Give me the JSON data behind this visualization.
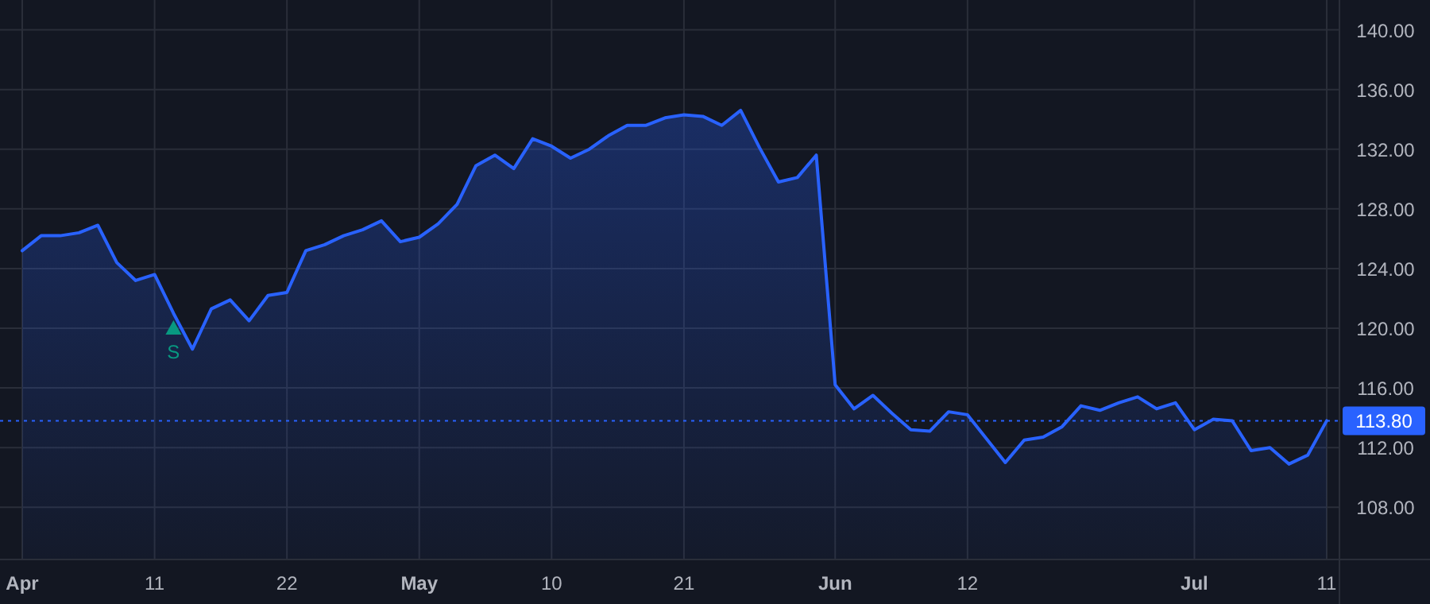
{
  "chart_data": {
    "type": "area",
    "categories": [
      "Apr",
      null,
      null,
      null,
      null,
      null,
      null,
      "11",
      null,
      null,
      null,
      null,
      null,
      null,
      "22",
      null,
      null,
      null,
      null,
      null,
      null,
      "May",
      null,
      null,
      null,
      null,
      null,
      null,
      "10",
      null,
      null,
      null,
      null,
      null,
      null,
      "21",
      null,
      null,
      null,
      null,
      null,
      null,
      null,
      "Jun",
      null,
      null,
      null,
      null,
      null,
      null,
      "12",
      null,
      null,
      null,
      null,
      null,
      null,
      null,
      null,
      null,
      null,
      null,
      "Jul",
      null,
      null,
      null,
      null,
      null,
      null,
      "11"
    ],
    "series": [
      {
        "color": "#2962ff",
        "values": [
          125.2,
          126.2,
          126.2,
          126.4,
          126.9,
          124.4,
          123.2,
          123.6,
          121.0,
          118.6,
          121.3,
          121.9,
          120.5,
          122.2,
          122.4,
          125.2,
          125.6,
          126.2,
          126.6,
          127.2,
          125.8,
          126.1,
          127.0,
          128.3,
          130.9,
          131.6,
          130.7,
          132.7,
          132.2,
          131.4,
          132.0,
          132.9,
          133.6,
          133.6,
          134.1,
          134.3,
          134.2,
          133.6,
          134.6,
          132.1,
          129.8,
          130.1,
          131.6,
          116.2,
          114.6,
          115.5,
          114.3,
          113.2,
          113.1,
          114.4,
          114.2,
          112.6,
          111.0,
          112.5,
          112.7,
          113.4,
          114.8,
          114.5,
          115.0,
          115.4,
          114.6,
          115.0,
          113.2,
          113.9,
          113.8,
          111.8,
          112.0,
          110.9,
          111.5,
          113.8
        ]
      },
      {
        "type": "scatter",
        "name": "S",
        "color": "#089981",
        "marker": "triangle",
        "values": [
          null,
          null,
          null,
          null,
          null,
          null,
          null,
          null,
          120.0,
          null,
          null,
          null,
          null,
          null,
          null,
          null,
          null,
          null,
          null,
          null,
          null,
          null,
          null,
          null,
          null,
          null,
          null,
          null,
          null,
          null,
          null,
          null,
          null,
          null,
          null,
          null,
          null,
          null,
          null,
          null,
          null,
          null,
          null,
          null,
          null,
          null,
          null,
          null,
          null,
          null,
          null,
          null,
          null,
          null,
          null,
          null,
          null,
          null,
          null,
          null,
          null,
          null,
          null,
          null,
          null,
          null,
          null,
          null,
          null,
          null
        ]
      }
    ],
    "ylim": [
      104.5,
      142
    ],
    "yticks": [
      {
        "value": 108,
        "label": "108.00"
      },
      {
        "value": 112,
        "label": "112.00"
      },
      {
        "value": 116,
        "label": "116.00"
      },
      {
        "value": 120,
        "label": "120.00"
      },
      {
        "value": 124,
        "label": "124.00"
      },
      {
        "value": 128,
        "label": "128.00"
      },
      {
        "value": 132,
        "label": "132.00"
      },
      {
        "value": 136,
        "label": "136.00"
      },
      {
        "value": 140,
        "label": "140.00"
      }
    ],
    "grid": true,
    "ref_lines": [
      {
        "axis": "y",
        "value": 113.8,
        "label": "113.80",
        "color": "#2962ff",
        "line_style": "dotted"
      }
    ]
  }
}
